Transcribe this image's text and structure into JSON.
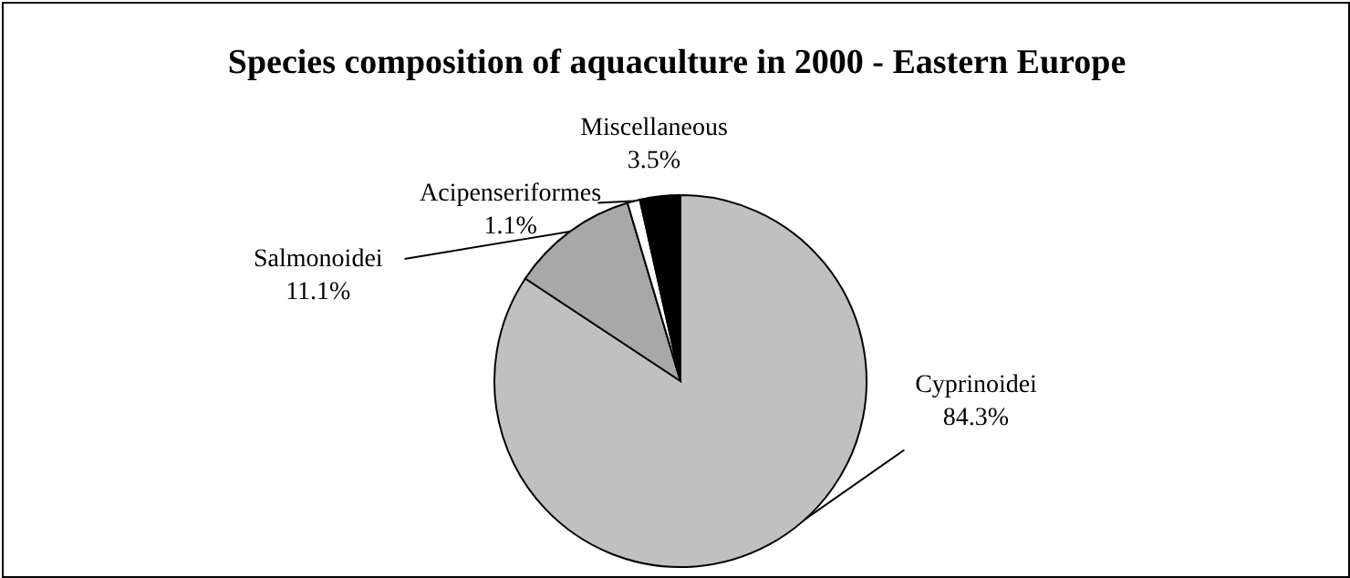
{
  "chart_data": {
    "type": "pie",
    "title": "Species composition of aquaculture in 2000 - Eastern Europe",
    "categories": [
      "Cyprinoidei",
      "Salmonoidei",
      "Acipenseriformes",
      "Miscellaneous"
    ],
    "values": [
      84.3,
      11.1,
      1.1,
      3.5
    ],
    "value_labels": [
      "84.3%",
      "11.1%",
      "1.1%",
      "3.5%"
    ],
    "colors": [
      "#c0c0c0",
      "#a8a8a8",
      "#ffffff",
      "#000000"
    ]
  }
}
